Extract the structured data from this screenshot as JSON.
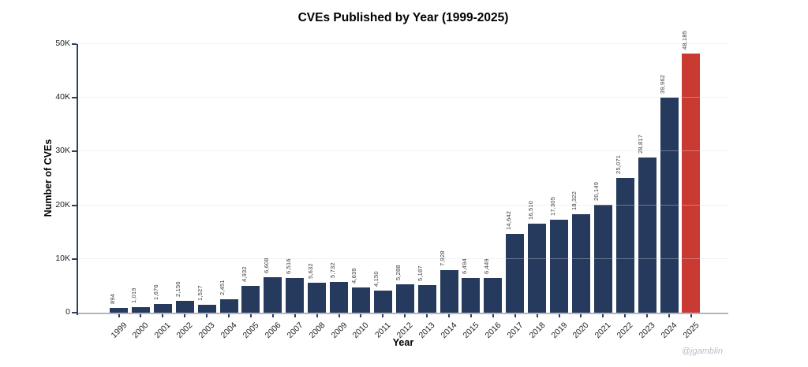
{
  "watermark": "@jgamblin",
  "chart_data": {
    "type": "bar",
    "title": "CVEs Published by Year (1999-2025)",
    "xlabel": "Year",
    "ylabel": "Number of CVEs",
    "categories": [
      "1999",
      "2000",
      "2001",
      "2002",
      "2003",
      "2004",
      "2005",
      "2006",
      "2007",
      "2008",
      "2009",
      "2010",
      "2011",
      "2012",
      "2013",
      "2014",
      "2015",
      "2016",
      "2017",
      "2018",
      "2019",
      "2020",
      "2021",
      "2022",
      "2023",
      "2024",
      "2025"
    ],
    "values": [
      894,
      1019,
      1676,
      2156,
      1527,
      2451,
      4932,
      6608,
      6516,
      5632,
      5732,
      4639,
      4150,
      5288,
      5187,
      7928,
      6494,
      6449,
      14642,
      16510,
      17305,
      18322,
      20149,
      25071,
      28817,
      39962,
      48185
    ],
    "ylim": [
      0,
      50000
    ],
    "ytick_interval": 10000,
    "ytick_labels": [
      "0",
      "10K",
      "20K",
      "30K",
      "40K",
      "50K"
    ],
    "grid": true,
    "legend": "none",
    "bar_color": "#253A5C",
    "highlight_color": "#C93A32",
    "highlight_category": "2025",
    "axis_color": "#2E3F5C",
    "baseline_color": "#B3B6C2",
    "gridline_color": "#ECECF2",
    "value_labels_shown": true
  }
}
